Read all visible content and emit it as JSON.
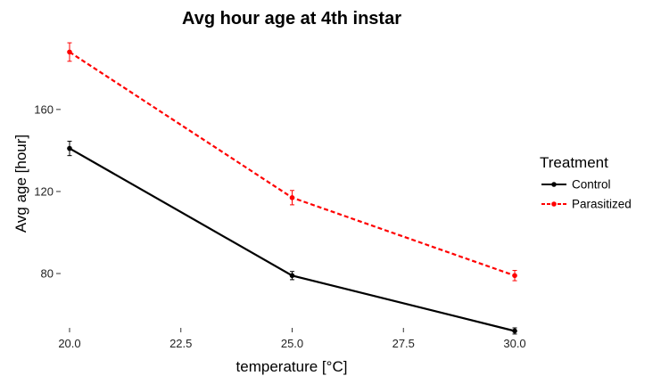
{
  "chart_data": {
    "type": "line",
    "title": "Avg hour age at 4th instar",
    "xlabel": "temperature [°C]",
    "ylabel": "Avg age [hour]",
    "x": [
      20,
      25,
      30
    ],
    "xlim": [
      19.8,
      30.2
    ],
    "ylim": [
      53.5,
      196
    ],
    "x_ticks": [
      20,
      22.5,
      25,
      27.5,
      30
    ],
    "x_tick_labels": [
      "20.0",
      "22.5",
      "25.0",
      "27.5",
      "30.0"
    ],
    "y_ticks": [
      80,
      120,
      160
    ],
    "y_tick_labels": [
      "80",
      "120",
      "160"
    ],
    "grid": false,
    "legend": {
      "title": "Treatment",
      "position": "right"
    },
    "series": [
      {
        "name": "Control",
        "color": "#000000",
        "line_style": "solid",
        "values": [
          141,
          79,
          52
        ],
        "error": [
          3.5,
          2,
          1.5
        ]
      },
      {
        "name": "Parasitized",
        "color": "#ff0000",
        "line_style": "dashed",
        "values": [
          188,
          117,
          79
        ],
        "error": [
          4.5,
          3.5,
          2.5
        ]
      }
    ]
  }
}
